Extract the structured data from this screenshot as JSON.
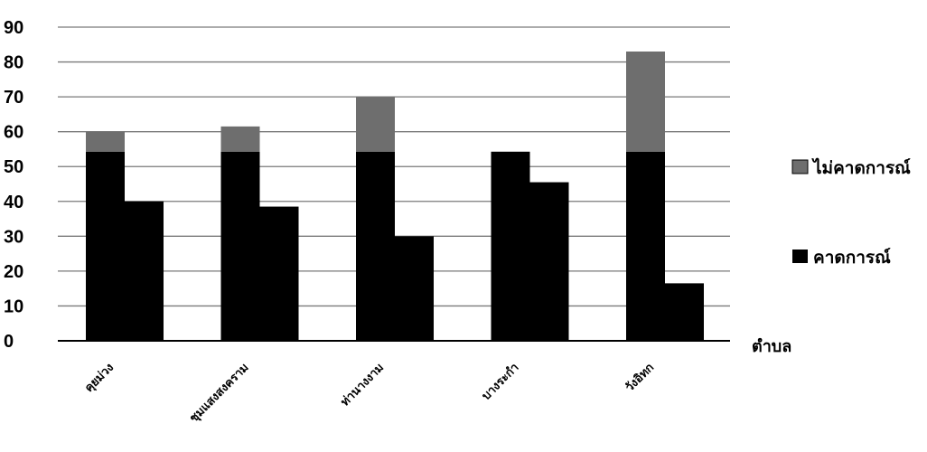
{
  "chart_data": {
    "type": "bar",
    "stacked_first_series": true,
    "categories": [
      "คุยม่วง",
      "ชุมแสงสงคราม",
      "ท่านางงาม",
      "บางระกำ",
      "วังอิทก"
    ],
    "series": [
      {
        "name": "คาดการณ์",
        "values": [
          54,
          54,
          54,
          54,
          54
        ],
        "color": "#000000"
      },
      {
        "name": "ไม่คาดการณ์",
        "values": [
          6,
          7.5,
          16,
          0.3,
          29
        ],
        "color": "#6e6e6e",
        "stack_on": "คาดการณ์"
      },
      {
        "name": "",
        "values": [
          40,
          38.5,
          30,
          45.5,
          16.5
        ],
        "color": "#000000"
      }
    ],
    "legend": [
      "ไม่คาดการณ์",
      "คาดการณ์"
    ],
    "legend_placement": "right",
    "xlabel": "ตำบล",
    "ylabel": "",
    "ylim": [
      0,
      90
    ],
    "yticks": [
      "0",
      "10",
      "20",
      "30",
      "40",
      "50",
      "60",
      "70",
      "80",
      "90"
    ],
    "grid": true
  }
}
